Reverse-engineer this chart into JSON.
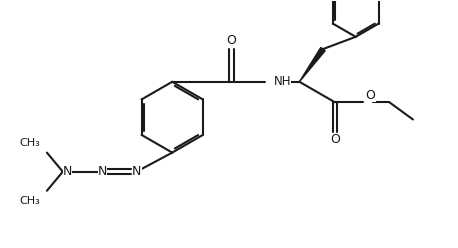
{
  "bg_color": "#ffffff",
  "line_color": "#1a1a1a",
  "line_width": 1.5,
  "font_size": 8.5,
  "figsize": [
    4.58,
    2.48
  ],
  "dpi": 100,
  "xlim": [
    0,
    10
  ],
  "ylim": [
    0,
    5.4
  ]
}
